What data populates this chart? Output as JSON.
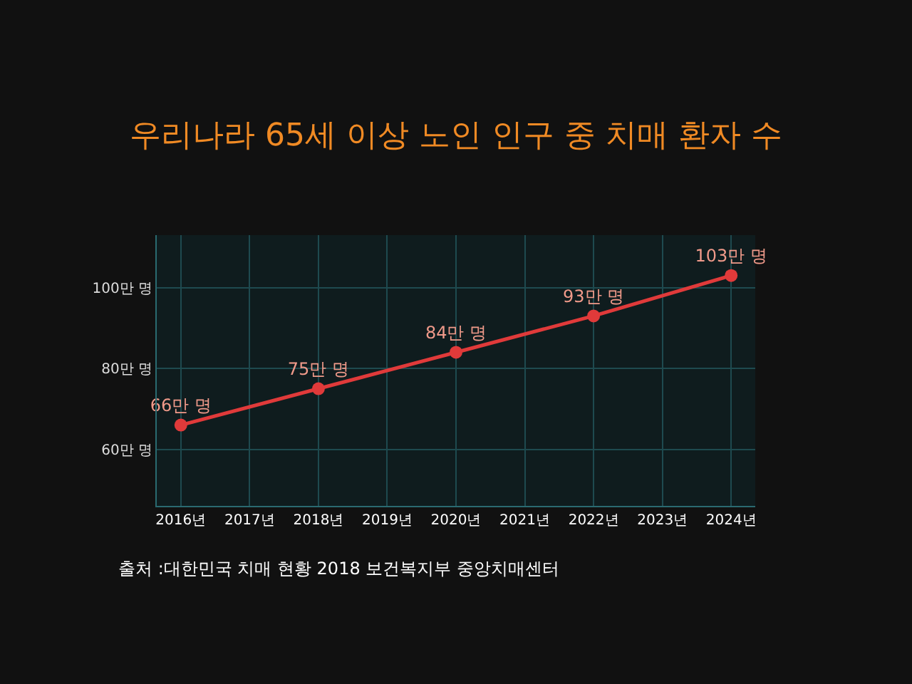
{
  "chart_data": {
    "type": "line",
    "title": "우리나라 65세 이상 노인 인구 중 치매 환자 수",
    "categories": [
      "2016년",
      "2017년",
      "2018년",
      "2019년",
      "2020년",
      "2021년",
      "2022년",
      "2023년",
      "2024년"
    ],
    "series": [
      {
        "color": "#e03a3a",
        "values": [
          66,
          null,
          75,
          null,
          84,
          null,
          93,
          null,
          103
        ],
        "value_labels": [
          "66만 명",
          null,
          "75만 명",
          null,
          "84만 명",
          null,
          "93만 명",
          null,
          "103만 명"
        ]
      }
    ],
    "ylim": [
      46,
      113
    ],
    "yticks": [
      {
        "value": 60,
        "label": "60만 명"
      },
      {
        "value": 80,
        "label": "80만 명"
      },
      {
        "value": 100,
        "label": "100만 명"
      }
    ],
    "grid": true,
    "marker": "circle",
    "line_style": "solid",
    "annotations": [
      "출처 :대한민국 치매 현황 2018 보건복지부 중앙치매센터"
    ]
  }
}
